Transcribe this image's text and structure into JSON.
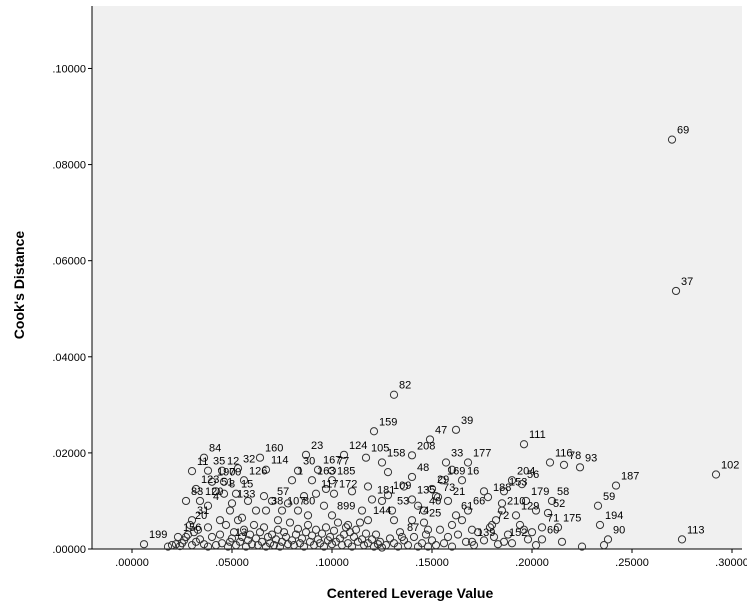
{
  "chart_data": {
    "type": "scatter",
    "title": "",
    "xlabel": "Centered Leverage Value",
    "ylabel": "Cook's Distance",
    "xlim": [
      -0.02,
      0.305
    ],
    "ylim": [
      0,
      0.113
    ],
    "x_ticks": [
      ".00000",
      ".05000",
      ".10000",
      ".15000",
      ".20000",
      ".25000",
      ".30000"
    ],
    "x_tick_values": [
      0,
      0.05,
      0.1,
      0.15,
      0.2,
      0.25,
      0.3
    ],
    "y_ticks": [
      ".00000",
      ".02000",
      ".04000",
      ".06000",
      ".08000",
      ".10000"
    ],
    "y_tick_values": [
      0,
      0.02,
      0.04,
      0.06,
      0.08,
      0.1
    ],
    "grid": false,
    "plot_background": "#f0f0f0",
    "marker": "open-circle",
    "labeled_points": [
      {
        "id": "69",
        "x": 0.27,
        "y": 0.0852
      },
      {
        "id": "37",
        "x": 0.272,
        "y": 0.0537
      },
      {
        "id": "82",
        "x": 0.131,
        "y": 0.0321
      },
      {
        "id": "159",
        "x": 0.121,
        "y": 0.0245
      },
      {
        "id": "39",
        "x": 0.162,
        "y": 0.0248
      },
      {
        "id": "47",
        "x": 0.149,
        "y": 0.0228
      },
      {
        "id": "111",
        "x": 0.196,
        "y": 0.0218
      },
      {
        "id": "124",
        "x": 0.106,
        "y": 0.0196
      },
      {
        "id": "23",
        "x": 0.087,
        "y": 0.0196
      },
      {
        "id": "160",
        "x": 0.064,
        "y": 0.019
      },
      {
        "id": "84",
        "x": 0.036,
        "y": 0.019
      },
      {
        "id": "32",
        "x": 0.053,
        "y": 0.0168
      },
      {
        "id": "35",
        "x": 0.038,
        "y": 0.0163
      },
      {
        "id": "12",
        "x": 0.045,
        "y": 0.0163
      },
      {
        "id": "114",
        "x": 0.067,
        "y": 0.0165
      },
      {
        "id": "30",
        "x": 0.083,
        "y": 0.0163
      },
      {
        "id": "167",
        "x": 0.093,
        "y": 0.0165
      },
      {
        "id": "77",
        "x": 0.1,
        "y": 0.0163
      },
      {
        "id": "105",
        "x": 0.117,
        "y": 0.019
      },
      {
        "id": "158",
        "x": 0.125,
        "y": 0.018
      },
      {
        "id": "208",
        "x": 0.14,
        "y": 0.0195
      },
      {
        "id": "33",
        "x": 0.157,
        "y": 0.018
      },
      {
        "id": "177",
        "x": 0.168,
        "y": 0.018
      },
      {
        "id": "116",
        "x": 0.209,
        "y": 0.018
      },
      {
        "id": "78",
        "x": 0.216,
        "y": 0.0175
      },
      {
        "id": "93",
        "x": 0.224,
        "y": 0.017
      },
      {
        "id": "102",
        "x": 0.292,
        "y": 0.0155
      },
      {
        "id": "187",
        "x": 0.242,
        "y": 0.0132
      },
      {
        "id": "11",
        "x": 0.03,
        "y": 0.0162
      },
      {
        "id": "190",
        "x": 0.04,
        "y": 0.014
      },
      {
        "id": "70",
        "x": 0.046,
        "y": 0.014
      },
      {
        "id": "126",
        "x": 0.056,
        "y": 0.0143
      },
      {
        "id": "1",
        "x": 0.08,
        "y": 0.0143
      },
      {
        "id": "163",
        "x": 0.09,
        "y": 0.0143
      },
      {
        "id": "185",
        "x": 0.1,
        "y": 0.0143
      },
      {
        "id": "48",
        "x": 0.14,
        "y": 0.015
      },
      {
        "id": "169",
        "x": 0.155,
        "y": 0.0143
      },
      {
        "id": "16",
        "x": 0.165,
        "y": 0.0143
      },
      {
        "id": "204",
        "x": 0.19,
        "y": 0.0143
      },
      {
        "id": "56",
        "x": 0.195,
        "y": 0.0135
      },
      {
        "id": "123",
        "x": 0.032,
        "y": 0.0125
      },
      {
        "id": "51",
        "x": 0.042,
        "y": 0.012
      },
      {
        "id": "8",
        "x": 0.046,
        "y": 0.0115
      },
      {
        "id": "15",
        "x": 0.052,
        "y": 0.0115
      },
      {
        "id": "117",
        "x": 0.092,
        "y": 0.0115
      },
      {
        "id": "172",
        "x": 0.101,
        "y": 0.0115
      },
      {
        "id": "29",
        "x": 0.15,
        "y": 0.0125
      },
      {
        "id": "109",
        "x": 0.128,
        "y": 0.0112
      },
      {
        "id": "181",
        "x": 0.12,
        "y": 0.0103
      },
      {
        "id": "135",
        "x": 0.14,
        "y": 0.0103
      },
      {
        "id": "73",
        "x": 0.153,
        "y": 0.0108
      },
      {
        "id": "188",
        "x": 0.178,
        "y": 0.0108
      },
      {
        "id": "153",
        "x": 0.186,
        "y": 0.012
      },
      {
        "id": "179",
        "x": 0.197,
        "y": 0.01
      },
      {
        "id": "58",
        "x": 0.21,
        "y": 0.01
      },
      {
        "id": "57",
        "x": 0.07,
        "y": 0.01
      },
      {
        "id": "83",
        "x": 0.027,
        "y": 0.01
      },
      {
        "id": "120",
        "x": 0.034,
        "y": 0.01
      },
      {
        "id": "4",
        "x": 0.038,
        "y": 0.009
      },
      {
        "id": "133",
        "x": 0.05,
        "y": 0.0095
      },
      {
        "id": "38",
        "x": 0.067,
        "y": 0.008
      },
      {
        "id": "107",
        "x": 0.075,
        "y": 0.008
      },
      {
        "id": "80",
        "x": 0.083,
        "y": 0.008
      },
      {
        "id": "899",
        "x": 0.1,
        "y": 0.007
      },
      {
        "id": "53",
        "x": 0.13,
        "y": 0.008
      },
      {
        "id": "40",
        "x": 0.146,
        "y": 0.008
      },
      {
        "id": "21",
        "x": 0.158,
        "y": 0.01
      },
      {
        "id": "66",
        "x": 0.168,
        "y": 0.008
      },
      {
        "id": "61",
        "x": 0.162,
        "y": 0.007
      },
      {
        "id": "210",
        "x": 0.185,
        "y": 0.008
      },
      {
        "id": "129",
        "x": 0.192,
        "y": 0.007
      },
      {
        "id": "52",
        "x": 0.208,
        "y": 0.0075
      },
      {
        "id": "59",
        "x": 0.233,
        "y": 0.009
      },
      {
        "id": "194",
        "x": 0.234,
        "y": 0.005
      },
      {
        "id": "31",
        "x": 0.03,
        "y": 0.006
      },
      {
        "id": "20",
        "x": 0.029,
        "y": 0.005
      },
      {
        "id": "144",
        "x": 0.118,
        "y": 0.006
      },
      {
        "id": "74",
        "x": 0.14,
        "y": 0.006
      },
      {
        "id": "25",
        "x": 0.146,
        "y": 0.0055
      },
      {
        "id": "72",
        "x": 0.18,
        "y": 0.005
      },
      {
        "id": "71",
        "x": 0.205,
        "y": 0.0045
      },
      {
        "id": "175",
        "x": 0.213,
        "y": 0.0045
      },
      {
        "id": "113",
        "x": 0.275,
        "y": 0.002
      },
      {
        "id": "90",
        "x": 0.238,
        "y": 0.002
      },
      {
        "id": "60",
        "x": 0.205,
        "y": 0.002
      },
      {
        "id": "152",
        "x": 0.186,
        "y": 0.0015
      },
      {
        "id": "139",
        "x": 0.17,
        "y": 0.0015
      },
      {
        "id": "87",
        "x": 0.135,
        "y": 0.0025
      },
      {
        "id": "199",
        "x": 0.006,
        "y": 0.001
      },
      {
        "id": "156",
        "x": 0.023,
        "y": 0.0025
      },
      {
        "id": "13",
        "x": 0.049,
        "y": 0.0015
      }
    ],
    "unlabeled_points": [
      [
        0.018,
        0.0005
      ],
      [
        0.02,
        0.0008
      ],
      [
        0.022,
        0.001
      ],
      [
        0.024,
        0.0006
      ],
      [
        0.025,
        0.0012
      ],
      [
        0.026,
        0.0018
      ],
      [
        0.027,
        0.0025
      ],
      [
        0.028,
        0.003
      ],
      [
        0.03,
        0.0008
      ],
      [
        0.031,
        0.0035
      ],
      [
        0.032,
        0.0015
      ],
      [
        0.033,
        0.004
      ],
      [
        0.034,
        0.002
      ],
      [
        0.036,
        0.001
      ],
      [
        0.038,
        0.0005
      ],
      [
        0.04,
        0.0025
      ],
      [
        0.042,
        0.0008
      ],
      [
        0.044,
        0.003
      ],
      [
        0.045,
        0.0012
      ],
      [
        0.047,
        0.005
      ],
      [
        0.048,
        0.0005
      ],
      [
        0.05,
        0.0022
      ],
      [
        0.051,
        0.0035
      ],
      [
        0.052,
        0.0008
      ],
      [
        0.053,
        0.006
      ],
      [
        0.054,
        0.0015
      ],
      [
        0.055,
        0.0025
      ],
      [
        0.056,
        0.004
      ],
      [
        0.057,
        0.0005
      ],
      [
        0.058,
        0.0018
      ],
      [
        0.059,
        0.003
      ],
      [
        0.06,
        0.001
      ],
      [
        0.061,
        0.005
      ],
      [
        0.062,
        0.0022
      ],
      [
        0.063,
        0.0008
      ],
      [
        0.064,
        0.0035
      ],
      [
        0.065,
        0.0015
      ],
      [
        0.066,
        0.0045
      ],
      [
        0.067,
        0.0005
      ],
      [
        0.068,
        0.0025
      ],
      [
        0.069,
        0.0012
      ],
      [
        0.07,
        0.003
      ],
      [
        0.071,
        0.0008
      ],
      [
        0.072,
        0.002
      ],
      [
        0.073,
        0.004
      ],
      [
        0.074,
        0.0005
      ],
      [
        0.075,
        0.0015
      ],
      [
        0.076,
        0.0035
      ],
      [
        0.077,
        0.0025
      ],
      [
        0.078,
        0.001
      ],
      [
        0.079,
        0.0055
      ],
      [
        0.08,
        0.0018
      ],
      [
        0.081,
        0.0008
      ],
      [
        0.082,
        0.003
      ],
      [
        0.083,
        0.0042
      ],
      [
        0.084,
        0.0012
      ],
      [
        0.085,
        0.0022
      ],
      [
        0.086,
        0.0005
      ],
      [
        0.087,
        0.0035
      ],
      [
        0.088,
        0.005
      ],
      [
        0.089,
        0.0015
      ],
      [
        0.09,
        0.0028
      ],
      [
        0.091,
        0.0008
      ],
      [
        0.092,
        0.004
      ],
      [
        0.093,
        0.002
      ],
      [
        0.094,
        0.0012
      ],
      [
        0.095,
        0.0032
      ],
      [
        0.096,
        0.0005
      ],
      [
        0.097,
        0.0045
      ],
      [
        0.098,
        0.0018
      ],
      [
        0.099,
        0.0025
      ],
      [
        0.1,
        0.001
      ],
      [
        0.101,
        0.0038
      ],
      [
        0.102,
        0.0015
      ],
      [
        0.103,
        0.0055
      ],
      [
        0.104,
        0.0022
      ],
      [
        0.105,
        0.0008
      ],
      [
        0.106,
        0.003
      ],
      [
        0.107,
        0.0045
      ],
      [
        0.108,
        0.0012
      ],
      [
        0.109,
        0.0035
      ],
      [
        0.11,
        0.0005
      ],
      [
        0.111,
        0.0025
      ],
      [
        0.112,
        0.004
      ],
      [
        0.113,
        0.0015
      ],
      [
        0.114,
        0.0055
      ],
      [
        0.115,
        0.002
      ],
      [
        0.116,
        0.0008
      ],
      [
        0.117,
        0.0032
      ],
      [
        0.118,
        0.0012
      ],
      [
        0.12,
        0.002
      ],
      [
        0.121,
        0.0005
      ],
      [
        0.122,
        0.003
      ],
      [
        0.123,
        0.001
      ],
      [
        0.124,
        0.0015
      ],
      [
        0.125,
        0.0003
      ],
      [
        0.127,
        0.0008
      ],
      [
        0.129,
        0.0022
      ],
      [
        0.131,
        0.0012
      ],
      [
        0.133,
        0.0005
      ],
      [
        0.134,
        0.0035
      ],
      [
        0.136,
        0.0018
      ],
      [
        0.138,
        0.0008
      ],
      [
        0.141,
        0.0025
      ],
      [
        0.143,
        0.0005
      ],
      [
        0.145,
        0.0012
      ],
      [
        0.147,
        0.003
      ],
      [
        0.148,
        0.0005
      ],
      [
        0.15,
        0.0018
      ],
      [
        0.152,
        0.0008
      ],
      [
        0.154,
        0.004
      ],
      [
        0.156,
        0.0012
      ],
      [
        0.158,
        0.0025
      ],
      [
        0.16,
        0.0005
      ],
      [
        0.163,
        0.003
      ],
      [
        0.165,
        0.006
      ],
      [
        0.167,
        0.0015
      ],
      [
        0.171,
        0.0008
      ],
      [
        0.173,
        0.0035
      ],
      [
        0.176,
        0.0018
      ],
      [
        0.179,
        0.0045
      ],
      [
        0.181,
        0.0025
      ],
      [
        0.183,
        0.001
      ],
      [
        0.188,
        0.003
      ],
      [
        0.19,
        0.0012
      ],
      [
        0.194,
        0.005
      ],
      [
        0.198,
        0.002
      ],
      [
        0.2,
        0.0035
      ],
      [
        0.202,
        0.0008
      ],
      [
        0.215,
        0.0015
      ],
      [
        0.225,
        0.0005
      ],
      [
        0.236,
        0.0008
      ],
      [
        0.131,
        0.006
      ],
      [
        0.125,
        0.01
      ],
      [
        0.115,
        0.008
      ],
      [
        0.108,
        0.005
      ],
      [
        0.096,
        0.009
      ],
      [
        0.088,
        0.007
      ],
      [
        0.073,
        0.006
      ],
      [
        0.062,
        0.008
      ],
      [
        0.055,
        0.0065
      ],
      [
        0.044,
        0.006
      ],
      [
        0.038,
        0.0045
      ],
      [
        0.148,
        0.004
      ],
      [
        0.16,
        0.005
      ],
      [
        0.17,
        0.004
      ],
      [
        0.182,
        0.006
      ],
      [
        0.196,
        0.004
      ],
      [
        0.143,
        0.009
      ],
      [
        0.136,
        0.013
      ],
      [
        0.128,
        0.016
      ],
      [
        0.118,
        0.013
      ],
      [
        0.11,
        0.012
      ],
      [
        0.097,
        0.0125
      ],
      [
        0.086,
        0.011
      ],
      [
        0.078,
        0.0095
      ],
      [
        0.066,
        0.011
      ],
      [
        0.058,
        0.01
      ],
      [
        0.049,
        0.008
      ],
      [
        0.176,
        0.012
      ],
      [
        0.185,
        0.0095
      ],
      [
        0.202,
        0.008
      ],
      [
        0.16,
        0.0165
      ],
      [
        0.152,
        0.011
      ]
    ]
  }
}
